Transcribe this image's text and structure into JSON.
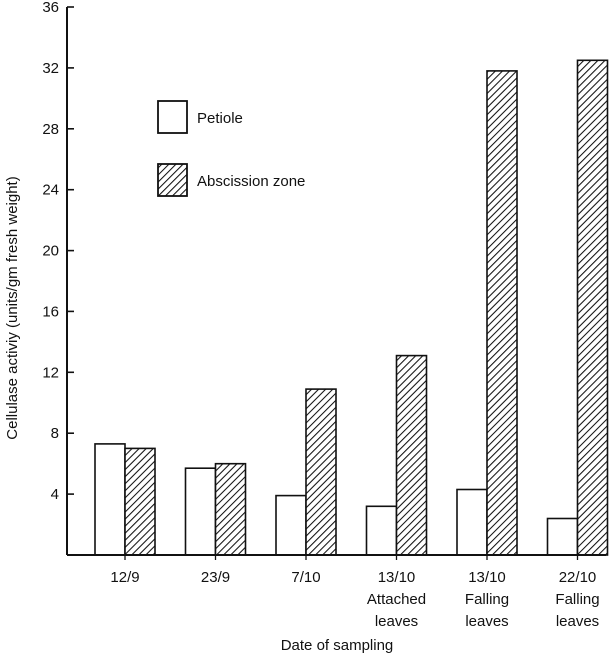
{
  "chart_data": {
    "type": "bar",
    "title": "",
    "xlabel": "Date of sampling",
    "ylabel": "Cellulase activiy (units/gm fresh weight)",
    "ylim": [
      0,
      36
    ],
    "yticks": [
      "4",
      "8",
      "12",
      "16",
      "20",
      "24",
      "28",
      "32",
      "36"
    ],
    "grid": false,
    "legend_placement": "upper-left inside plot",
    "categories": [
      [
        "12/9"
      ],
      [
        "23/9"
      ],
      [
        "7/10"
      ],
      [
        "13/10",
        "Attached",
        "leaves"
      ],
      [
        "13/10",
        "Falling",
        "leaves"
      ],
      [
        "22/10",
        "Falling",
        "leaves"
      ]
    ],
    "series": [
      {
        "name": "Petiole",
        "pattern": "open",
        "values": [
          7.3,
          5.7,
          3.9,
          3.2,
          4.3,
          2.4
        ]
      },
      {
        "name": "Abscission zone",
        "pattern": "hatched",
        "values": [
          7.0,
          6.0,
          10.9,
          13.1,
          31.8,
          32.5
        ]
      }
    ],
    "colors": {
      "axis": "#111111",
      "bar_fill": "#ffffff",
      "hatch": "#111111"
    }
  }
}
